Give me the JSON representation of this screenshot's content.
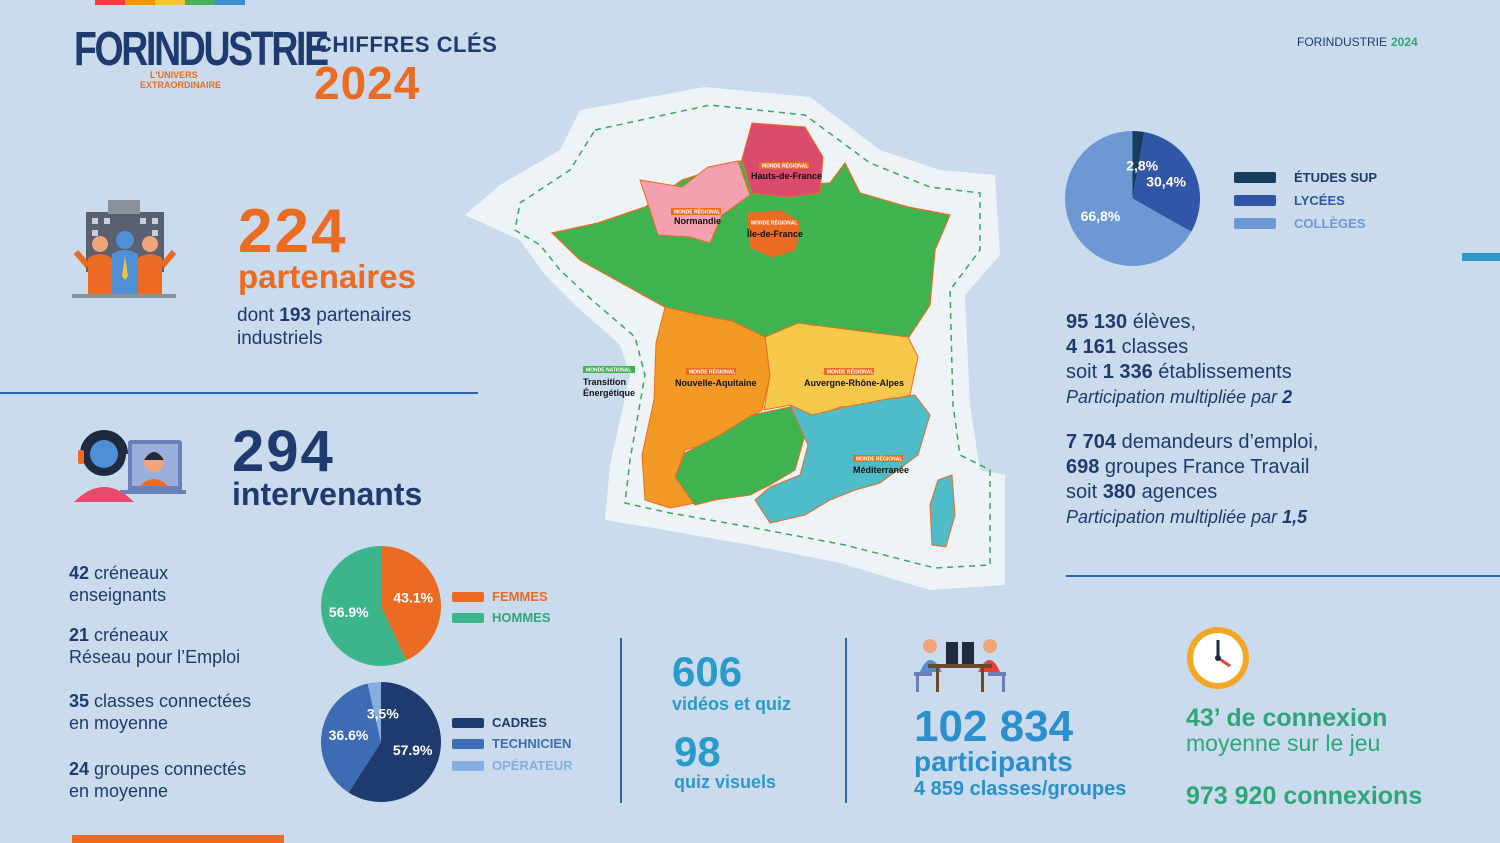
{
  "brand": {
    "logo": "FORINDUSTRIE",
    "logo_tagline_1": "L'UNIVERS",
    "logo_tagline_2": "EXTRAORDINAIRE",
    "header_title": "CHIFFRES CLÉS",
    "header_year": "2024",
    "top_right_name": "FORINDUSTRIE",
    "top_right_year": "2024"
  },
  "partners": {
    "count": "224",
    "label": "partenaires",
    "sub_prefix": "dont ",
    "sub_number": "193",
    "sub_suffix": " partenaires",
    "sub_line2": "industriels"
  },
  "speakers": {
    "count": "294",
    "label": "intervenants"
  },
  "left_stats": [
    {
      "num": "42",
      "text": " créneaux",
      "line2": "enseignants"
    },
    {
      "num": "21",
      "text": " créneaux",
      "line2": "Réseau pour l’Emploi"
    },
    {
      "num": "35",
      "text": " classes connectées",
      "line2": "en moyenne"
    },
    {
      "num": "24",
      "text": " groupes connectés",
      "line2": "en moyenne"
    }
  ],
  "gender_chart": {
    "legend": [
      "FEMMES",
      "HOMMES"
    ],
    "labels": [
      "43.1%",
      "56.9%"
    ]
  },
  "role_chart": {
    "legend": [
      "CADRES",
      "TECHNICIEN",
      "OPÉRATEUR"
    ],
    "labels": [
      "57.9%",
      "36.6%",
      "3,5%"
    ]
  },
  "school_chart": {
    "legend": [
      "ÉTUDES SUP",
      "LYCÉES",
      "COLLÈGES"
    ],
    "labels": [
      "2,8%",
      "30,4%",
      "66,8%"
    ]
  },
  "chart_data": [
    {
      "type": "pie",
      "categories": [
        "FEMMES",
        "HOMMES"
      ],
      "values": [
        43.1,
        56.9
      ],
      "colors": [
        "#ec6b22",
        "#3db58a"
      ]
    },
    {
      "type": "pie",
      "categories": [
        "CADRES",
        "TECHNICIEN",
        "OPÉRATEUR"
      ],
      "values": [
        57.9,
        36.6,
        3.5
      ],
      "colors": [
        "#1f3a6e",
        "#3d6cb4",
        "#86aede"
      ]
    },
    {
      "type": "pie",
      "categories": [
        "ÉTUDES SUP",
        "LYCÉES",
        "COLLÈGES"
      ],
      "values": [
        2.8,
        30.4,
        66.8
      ],
      "colors": [
        "#173d5c",
        "#3156a8",
        "#6e98d4"
      ]
    }
  ],
  "students": {
    "l1_num": "95 130",
    "l1_text": " élèves,",
    "l2_num": "4 161",
    "l2_text": " classes",
    "l3_pre": "soit ",
    "l3_num": "1 336",
    "l3_text": " établissements",
    "l4_text": "Participation multipliée par ",
    "l4_num": "2"
  },
  "jobseekers": {
    "l1_num": "7 704",
    "l1_text": " demandeurs d’emploi,",
    "l2_num": "698",
    "l2_text": " groupes France Travail",
    "l3_pre": "soit ",
    "l3_num": "380",
    "l3_text": " agences",
    "l4_text": "Participation multipliée par ",
    "l4_num": "1,5"
  },
  "content": {
    "videos_num": "606",
    "videos_label": "vidéos et quiz",
    "quiz_num": "98",
    "quiz_label": "quiz visuels"
  },
  "participants": {
    "num": "102 834",
    "label": "participants",
    "sub": "4 859 classes/groupes"
  },
  "connection": {
    "line1": "43’ de connexion",
    "line2": "moyenne sur le jeu",
    "total": "973 920 connexions"
  },
  "map": {
    "badge_regional": "MONDE RÉGIONAL",
    "badge_national": "MONDE NATIONAL",
    "regions": [
      "Hauts-de-France",
      "Normandie",
      "Île-de-France",
      "Nouvelle-Aquitaine",
      "Auvergne-Rhône-Alpes",
      "Méditerranée"
    ],
    "national_line1": "Transition",
    "national_line2": "Énergétique"
  }
}
